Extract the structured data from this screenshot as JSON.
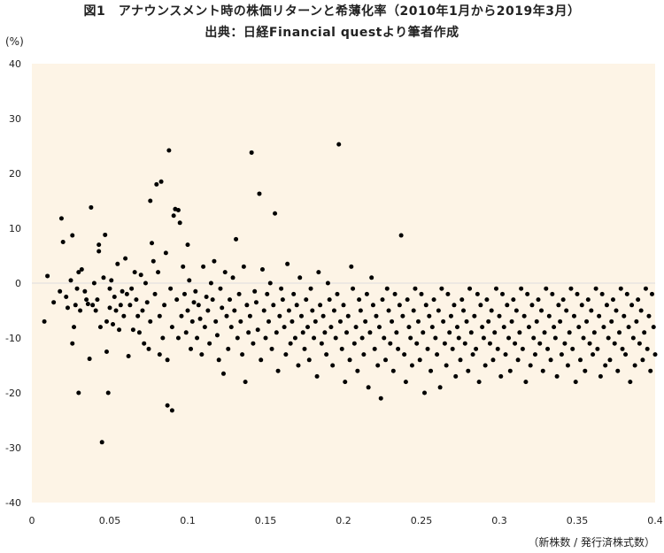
{
  "title": "図1　アナウンスメント時の株価リターンと希薄化率（2010年1月から2019年3月）",
  "subtitle": "出典：日経Financial questより筆者作成",
  "y_unit": "(%)",
  "x_unit": "（新株数 / 発行済株式数）",
  "colors": {
    "plot_bg": "#fdf4e6",
    "point": "#000000",
    "grid": "#dddddd"
  },
  "chart_data": {
    "type": "scatter",
    "xlim": [
      0,
      0.4
    ],
    "ylim": [
      -40,
      40
    ],
    "x_ticks": [
      "0",
      "0.05",
      "0.1",
      "0.15",
      "0.2",
      "0.25",
      "0.3",
      "0.35",
      "0.4"
    ],
    "y_ticks": [
      "40",
      "30",
      "20",
      "10",
      "0",
      "-10",
      "-20",
      "-30",
      "-40"
    ],
    "grid": false,
    "points": [
      [
        0.008,
        -7
      ],
      [
        0.01,
        1.3
      ],
      [
        0.014,
        -3.5
      ],
      [
        0.018,
        -1.5
      ],
      [
        0.019,
        11.8
      ],
      [
        0.02,
        7.5
      ],
      [
        0.022,
        -2.5
      ],
      [
        0.023,
        -4.5
      ],
      [
        0.025,
        0.5
      ],
      [
        0.026,
        8.7
      ],
      [
        0.026,
        -11
      ],
      [
        0.027,
        -8
      ],
      [
        0.028,
        -4
      ],
      [
        0.029,
        -1
      ],
      [
        0.03,
        2
      ],
      [
        0.03,
        -20
      ],
      [
        0.031,
        -5
      ],
      [
        0.032,
        2.5
      ],
      [
        0.034,
        -1.5
      ],
      [
        0.035,
        -3
      ],
      [
        0.036,
        -3.8
      ],
      [
        0.037,
        -13.8
      ],
      [
        0.038,
        13.8
      ],
      [
        0.039,
        -4
      ],
      [
        0.04,
        0
      ],
      [
        0.041,
        -5
      ],
      [
        0.042,
        -3
      ],
      [
        0.043,
        5.8
      ],
      [
        0.043,
        7
      ],
      [
        0.044,
        -8
      ],
      [
        0.045,
        -29
      ],
      [
        0.046,
        1
      ],
      [
        0.047,
        8.8
      ],
      [
        0.048,
        -7
      ],
      [
        0.048,
        -12.5
      ],
      [
        0.049,
        -20
      ],
      [
        0.05,
        -1
      ],
      [
        0.05,
        -4.5
      ],
      [
        0.051,
        0.5
      ],
      [
        0.052,
        -7.5
      ],
      [
        0.053,
        -2.5
      ],
      [
        0.054,
        -5
      ],
      [
        0.055,
        3.5
      ],
      [
        0.056,
        -8.5
      ],
      [
        0.057,
        -4
      ],
      [
        0.058,
        -1.5
      ],
      [
        0.059,
        -6
      ],
      [
        0.06,
        4.5
      ],
      [
        0.061,
        -2
      ],
      [
        0.062,
        -13.3
      ],
      [
        0.063,
        -4
      ],
      [
        0.064,
        -1
      ],
      [
        0.065,
        -8.5
      ],
      [
        0.066,
        2
      ],
      [
        0.067,
        -3
      ],
      [
        0.068,
        -6
      ],
      [
        0.069,
        -9
      ],
      [
        0.07,
        1.5
      ],
      [
        0.071,
        -5
      ],
      [
        0.072,
        -11
      ],
      [
        0.073,
        0
      ],
      [
        0.074,
        -3.5
      ],
      [
        0.075,
        -12
      ],
      [
        0.076,
        -7
      ],
      [
        0.076,
        15
      ],
      [
        0.077,
        7.3
      ],
      [
        0.078,
        4
      ],
      [
        0.079,
        -2
      ],
      [
        0.08,
        18
      ],
      [
        0.081,
        2
      ],
      [
        0.082,
        -6
      ],
      [
        0.082,
        -13
      ],
      [
        0.083,
        18.5
      ],
      [
        0.084,
        -10
      ],
      [
        0.085,
        -4
      ],
      [
        0.086,
        5.5
      ],
      [
        0.087,
        -14
      ],
      [
        0.087,
        -22.3
      ],
      [
        0.088,
        24.2
      ],
      [
        0.089,
        -1
      ],
      [
        0.09,
        -8
      ],
      [
        0.09,
        -23.2
      ],
      [
        0.091,
        12.3
      ],
      [
        0.092,
        13.5
      ],
      [
        0.093,
        -3
      ],
      [
        0.094,
        -10
      ],
      [
        0.094,
        13.3
      ],
      [
        0.095,
        11
      ],
      [
        0.096,
        -6
      ],
      [
        0.097,
        3
      ],
      [
        0.098,
        -2
      ],
      [
        0.099,
        -9
      ],
      [
        0.1,
        -5
      ],
      [
        0.1,
        7
      ],
      [
        0.101,
        0.5
      ],
      [
        0.102,
        -12
      ],
      [
        0.103,
        -7
      ],
      [
        0.104,
        -3.5
      ],
      [
        0.105,
        -1.5
      ],
      [
        0.106,
        -10
      ],
      [
        0.107,
        -4
      ],
      [
        0.108,
        -6.5
      ],
      [
        0.109,
        -13
      ],
      [
        0.11,
        3
      ],
      [
        0.111,
        -8
      ],
      [
        0.112,
        -2.5
      ],
      [
        0.113,
        -5
      ],
      [
        0.114,
        -11
      ],
      [
        0.115,
        0
      ],
      [
        0.116,
        -3
      ],
      [
        0.117,
        4
      ],
      [
        0.118,
        -7
      ],
      [
        0.119,
        -9.5
      ],
      [
        0.12,
        -14
      ],
      [
        0.121,
        -1
      ],
      [
        0.122,
        -4.5
      ],
      [
        0.123,
        -16.5
      ],
      [
        0.124,
        2
      ],
      [
        0.125,
        -6
      ],
      [
        0.126,
        -12
      ],
      [
        0.127,
        -3
      ],
      [
        0.128,
        -8
      ],
      [
        0.129,
        1
      ],
      [
        0.13,
        -5
      ],
      [
        0.131,
        8
      ],
      [
        0.132,
        -10
      ],
      [
        0.133,
        -2
      ],
      [
        0.134,
        -7
      ],
      [
        0.135,
        -13
      ],
      [
        0.136,
        3
      ],
      [
        0.137,
        -18
      ],
      [
        0.138,
        -4
      ],
      [
        0.139,
        -9
      ],
      [
        0.14,
        -6
      ],
      [
        0.141,
        23.8
      ],
      [
        0.142,
        -11
      ],
      [
        0.143,
        -1.5
      ],
      [
        0.144,
        -3.5
      ],
      [
        0.145,
        -8.5
      ],
      [
        0.146,
        16.3
      ],
      [
        0.147,
        -14
      ],
      [
        0.148,
        2.5
      ],
      [
        0.149,
        -5
      ],
      [
        0.15,
        -10
      ],
      [
        0.151,
        -2
      ],
      [
        0.152,
        -7
      ],
      [
        0.153,
        0
      ],
      [
        0.154,
        -12
      ],
      [
        0.155,
        -4
      ],
      [
        0.156,
        12.7
      ],
      [
        0.157,
        -9
      ],
      [
        0.158,
        -16
      ],
      [
        0.159,
        -6
      ],
      [
        0.16,
        -1
      ],
      [
        0.161,
        -3
      ],
      [
        0.162,
        -8
      ],
      [
        0.163,
        -13
      ],
      [
        0.164,
        3.5
      ],
      [
        0.165,
        -5
      ],
      [
        0.166,
        -11
      ],
      [
        0.167,
        -7
      ],
      [
        0.168,
        -2
      ],
      [
        0.169,
        -10
      ],
      [
        0.17,
        -4
      ],
      [
        0.171,
        -15
      ],
      [
        0.172,
        1
      ],
      [
        0.173,
        -6
      ],
      [
        0.174,
        -9
      ],
      [
        0.175,
        -12
      ],
      [
        0.176,
        -3
      ],
      [
        0.177,
        -8
      ],
      [
        0.178,
        -14
      ],
      [
        0.179,
        -1
      ],
      [
        0.18,
        -5
      ],
      [
        0.181,
        -10
      ],
      [
        0.182,
        -7
      ],
      [
        0.183,
        -17
      ],
      [
        0.184,
        2
      ],
      [
        0.185,
        -4
      ],
      [
        0.186,
        -11
      ],
      [
        0.187,
        -6
      ],
      [
        0.188,
        -9
      ],
      [
        0.189,
        -13
      ],
      [
        0.19,
        0
      ],
      [
        0.191,
        -3
      ],
      [
        0.192,
        -8
      ],
      [
        0.193,
        -15
      ],
      [
        0.194,
        -5
      ],
      [
        0.195,
        -10
      ],
      [
        0.196,
        -2
      ],
      [
        0.197,
        25.3
      ],
      [
        0.198,
        -7
      ],
      [
        0.199,
        -12
      ],
      [
        0.2,
        -4
      ],
      [
        0.201,
        -18
      ],
      [
        0.202,
        -9
      ],
      [
        0.203,
        -6
      ],
      [
        0.204,
        -14
      ],
      [
        0.205,
        3
      ],
      [
        0.206,
        -1
      ],
      [
        0.207,
        -11
      ],
      [
        0.208,
        -8
      ],
      [
        0.209,
        -16
      ],
      [
        0.21,
        -3
      ],
      [
        0.211,
        -5
      ],
      [
        0.212,
        -10
      ],
      [
        0.213,
        -13
      ],
      [
        0.214,
        -7
      ],
      [
        0.215,
        -2
      ],
      [
        0.216,
        -19
      ],
      [
        0.217,
        -9
      ],
      [
        0.218,
        1
      ],
      [
        0.219,
        -4
      ],
      [
        0.22,
        -12
      ],
      [
        0.221,
        -6
      ],
      [
        0.222,
        -15
      ],
      [
        0.223,
        -8
      ],
      [
        0.224,
        -21
      ],
      [
        0.225,
        -3
      ],
      [
        0.226,
        -10
      ],
      [
        0.227,
        -14
      ],
      [
        0.228,
        -1
      ],
      [
        0.229,
        -5
      ],
      [
        0.23,
        -11
      ],
      [
        0.231,
        -7
      ],
      [
        0.232,
        -16
      ],
      [
        0.233,
        -2
      ],
      [
        0.234,
        -9
      ],
      [
        0.235,
        -12
      ],
      [
        0.236,
        -4
      ],
      [
        0.237,
        8.7
      ],
      [
        0.238,
        -6
      ],
      [
        0.239,
        -13
      ],
      [
        0.24,
        -18
      ],
      [
        0.241,
        -3
      ],
      [
        0.242,
        -8
      ],
      [
        0.243,
        -10
      ],
      [
        0.244,
        -15
      ],
      [
        0.245,
        -5
      ],
      [
        0.246,
        -1
      ],
      [
        0.247,
        -11
      ],
      [
        0.248,
        -7
      ],
      [
        0.249,
        -14
      ],
      [
        0.25,
        -2
      ],
      [
        0.251,
        -9
      ],
      [
        0.252,
        -20
      ],
      [
        0.253,
        -4
      ],
      [
        0.254,
        -12
      ],
      [
        0.255,
        -6
      ],
      [
        0.256,
        -16
      ],
      [
        0.257,
        -8
      ],
      [
        0.258,
        -3
      ],
      [
        0.259,
        -10
      ],
      [
        0.26,
        -13
      ],
      [
        0.261,
        -5
      ],
      [
        0.262,
        -19
      ],
      [
        0.263,
        -1
      ],
      [
        0.264,
        -7
      ],
      [
        0.265,
        -11
      ],
      [
        0.266,
        -15
      ],
      [
        0.267,
        -2
      ],
      [
        0.268,
        -9
      ],
      [
        0.269,
        -6
      ],
      [
        0.27,
        -12
      ],
      [
        0.271,
        -4
      ],
      [
        0.272,
        -17
      ],
      [
        0.273,
        -8
      ],
      [
        0.274,
        -10
      ],
      [
        0.275,
        -14
      ],
      [
        0.276,
        -3
      ],
      [
        0.277,
        -5
      ],
      [
        0.278,
        -11
      ],
      [
        0.279,
        -7
      ],
      [
        0.28,
        -16
      ],
      [
        0.281,
        -1
      ],
      [
        0.282,
        -9
      ],
      [
        0.283,
        -13
      ],
      [
        0.284,
        -6
      ],
      [
        0.285,
        -12
      ],
      [
        0.286,
        -2
      ],
      [
        0.287,
        -18
      ],
      [
        0.288,
        -4
      ],
      [
        0.289,
        -8
      ],
      [
        0.29,
        -10
      ],
      [
        0.291,
        -15
      ],
      [
        0.292,
        -3
      ],
      [
        0.293,
        -7
      ],
      [
        0.294,
        -11
      ],
      [
        0.295,
        -5
      ],
      [
        0.296,
        -14
      ],
      [
        0.297,
        -9
      ],
      [
        0.298,
        -1
      ],
      [
        0.299,
        -12
      ],
      [
        0.3,
        -6
      ],
      [
        0.301,
        -17
      ],
      [
        0.302,
        -2
      ],
      [
        0.303,
        -8
      ],
      [
        0.304,
        -13
      ],
      [
        0.305,
        -4
      ],
      [
        0.306,
        -10
      ],
      [
        0.307,
        -16
      ],
      [
        0.308,
        -7
      ],
      [
        0.309,
        -3
      ],
      [
        0.31,
        -11
      ],
      [
        0.311,
        -5
      ],
      [
        0.312,
        -14
      ],
      [
        0.313,
        -9
      ],
      [
        0.314,
        -1
      ],
      [
        0.315,
        -12
      ],
      [
        0.316,
        -6
      ],
      [
        0.317,
        -18
      ],
      [
        0.318,
        -2
      ],
      [
        0.319,
        -8
      ],
      [
        0.32,
        -15
      ],
      [
        0.321,
        -4
      ],
      [
        0.322,
        -10
      ],
      [
        0.323,
        -13
      ],
      [
        0.324,
        -7
      ],
      [
        0.325,
        -3
      ],
      [
        0.326,
        -11
      ],
      [
        0.327,
        -5
      ],
      [
        0.328,
        -16
      ],
      [
        0.329,
        -9
      ],
      [
        0.33,
        -1
      ],
      [
        0.331,
        -12
      ],
      [
        0.332,
        -6
      ],
      [
        0.333,
        -14
      ],
      [
        0.334,
        -2
      ],
      [
        0.335,
        -8
      ],
      [
        0.336,
        -10
      ],
      [
        0.337,
        -17
      ],
      [
        0.338,
        -4
      ],
      [
        0.339,
        -7
      ],
      [
        0.34,
        -13
      ],
      [
        0.341,
        -3
      ],
      [
        0.342,
        -11
      ],
      [
        0.343,
        -5
      ],
      [
        0.344,
        -15
      ],
      [
        0.345,
        -9
      ],
      [
        0.346,
        -1
      ],
      [
        0.347,
        -12
      ],
      [
        0.348,
        -6
      ],
      [
        0.349,
        -18
      ],
      [
        0.35,
        -2
      ],
      [
        0.351,
        -8
      ],
      [
        0.352,
        -14
      ],
      [
        0.353,
        -4
      ],
      [
        0.354,
        -10
      ],
      [
        0.355,
        -16
      ],
      [
        0.356,
        -7
      ],
      [
        0.357,
        -3
      ],
      [
        0.358,
        -11
      ],
      [
        0.359,
        -5
      ],
      [
        0.36,
        -13
      ],
      [
        0.361,
        -9
      ],
      [
        0.362,
        -1
      ],
      [
        0.363,
        -12
      ],
      [
        0.364,
        -6
      ],
      [
        0.365,
        -17
      ],
      [
        0.366,
        -2
      ],
      [
        0.367,
        -8
      ],
      [
        0.368,
        -15
      ],
      [
        0.369,
        -4
      ],
      [
        0.37,
        -10
      ],
      [
        0.371,
        -14
      ],
      [
        0.372,
        -7
      ],
      [
        0.373,
        -3
      ],
      [
        0.374,
        -11
      ],
      [
        0.375,
        -5
      ],
      [
        0.376,
        -16
      ],
      [
        0.377,
        -9
      ],
      [
        0.378,
        -1
      ],
      [
        0.379,
        -12
      ],
      [
        0.38,
        -6
      ],
      [
        0.381,
        -13
      ],
      [
        0.382,
        -2
      ],
      [
        0.383,
        -8
      ],
      [
        0.384,
        -18
      ],
      [
        0.385,
        -4
      ],
      [
        0.386,
        -10
      ],
      [
        0.387,
        -15
      ],
      [
        0.388,
        -7
      ],
      [
        0.389,
        -3
      ],
      [
        0.39,
        -11
      ],
      [
        0.391,
        -5
      ],
      [
        0.392,
        -14
      ],
      [
        0.393,
        -9
      ],
      [
        0.394,
        -1
      ],
      [
        0.395,
        -12
      ],
      [
        0.396,
        -6
      ],
      [
        0.397,
        -16
      ],
      [
        0.398,
        -2
      ],
      [
        0.399,
        -8
      ],
      [
        0.4,
        -13
      ]
    ]
  }
}
